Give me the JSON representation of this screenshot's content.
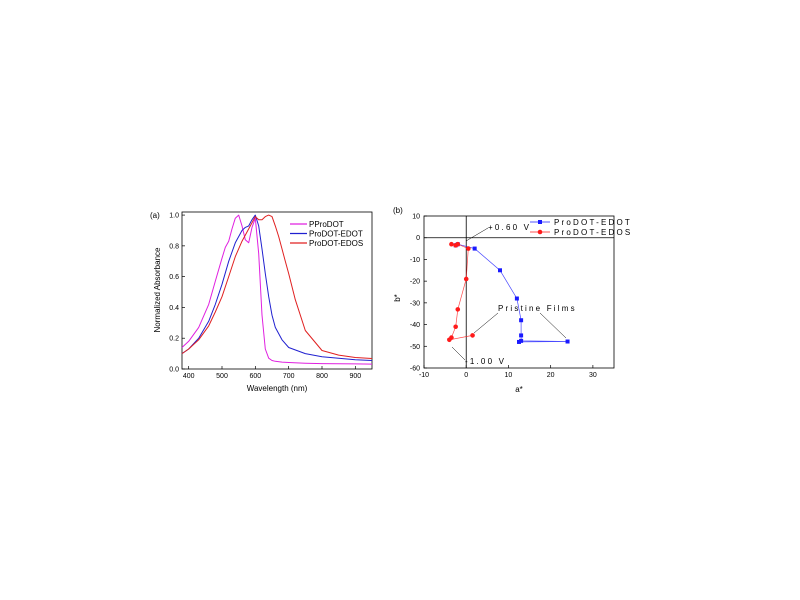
{
  "chart_data": [
    {
      "type": "line",
      "panel_label": "(a)",
      "xlabel": "Wavelength (nm)",
      "ylabel": "Normalized Absorbance",
      "xlim": [
        380,
        950
      ],
      "ylim": [
        0.0,
        1.02
      ],
      "xticks": [
        400,
        500,
        600,
        700,
        800,
        900
      ],
      "yticks": [
        0.0,
        0.2,
        0.4,
        0.6,
        0.8,
        1.0
      ],
      "grid": false,
      "legend_position": "top-right",
      "series": [
        {
          "name": "PProDOT",
          "color": "#e020e0",
          "x": [
            380,
            400,
            430,
            460,
            480,
            500,
            510,
            520,
            530,
            540,
            550,
            560,
            570,
            580,
            590,
            600,
            610,
            620,
            630,
            640,
            650,
            660,
            680,
            700,
            750,
            800,
            850,
            900,
            950
          ],
          "y": [
            0.14,
            0.18,
            0.27,
            0.42,
            0.57,
            0.72,
            0.79,
            0.83,
            0.91,
            0.98,
            1.0,
            0.93,
            0.84,
            0.82,
            0.92,
            0.98,
            0.75,
            0.35,
            0.13,
            0.07,
            0.055,
            0.05,
            0.045,
            0.042,
            0.038,
            0.035,
            0.034,
            0.033,
            0.032
          ]
        },
        {
          "name": "ProDOT-EDOT",
          "color": "#2020d0",
          "x": [
            380,
            400,
            430,
            460,
            480,
            500,
            520,
            540,
            560,
            570,
            580,
            590,
            600,
            610,
            620,
            630,
            640,
            650,
            660,
            680,
            700,
            750,
            800,
            850,
            900,
            950
          ],
          "y": [
            0.1,
            0.13,
            0.2,
            0.31,
            0.42,
            0.55,
            0.7,
            0.82,
            0.9,
            0.92,
            0.93,
            0.97,
            1.0,
            0.93,
            0.78,
            0.62,
            0.47,
            0.35,
            0.27,
            0.19,
            0.14,
            0.1,
            0.08,
            0.07,
            0.06,
            0.055
          ]
        },
        {
          "name": "ProDOT-EDOS",
          "color": "#e02020",
          "x": [
            380,
            400,
            430,
            460,
            480,
            500,
            520,
            540,
            560,
            580,
            590,
            600,
            610,
            620,
            630,
            640,
            650,
            660,
            670,
            680,
            690,
            700,
            720,
            750,
            800,
            850,
            900,
            950
          ],
          "y": [
            0.1,
            0.13,
            0.19,
            0.28,
            0.37,
            0.47,
            0.6,
            0.73,
            0.83,
            0.91,
            0.95,
            0.99,
            0.97,
            0.97,
            0.99,
            1.0,
            0.99,
            0.93,
            0.86,
            0.78,
            0.7,
            0.62,
            0.45,
            0.25,
            0.12,
            0.09,
            0.075,
            0.068
          ]
        }
      ]
    },
    {
      "type": "scatter",
      "panel_label": "(b)",
      "xlabel": "a*",
      "ylabel": "b*",
      "xlim": [
        -10,
        35
      ],
      "ylim": [
        -60,
        10
      ],
      "xticks": [
        -10,
        0,
        10,
        20,
        30
      ],
      "yticks": [
        10,
        0,
        -10,
        -20,
        -30,
        -40,
        -50,
        -60
      ],
      "grid": false,
      "legend_position": "top-right",
      "series": [
        {
          "name": "ProDOT-EDOT",
          "color": "#1a1aff",
          "marker": "square",
          "x": [
            -2.5,
            -2.0,
            2.0,
            8.0,
            12.0,
            13.0,
            13.0,
            13.0,
            24.0,
            12.5
          ],
          "y": [
            -3.5,
            -3.0,
            -5.0,
            -15.0,
            -28.0,
            -38.0,
            -45.0,
            -47.5,
            -47.8,
            -48.0
          ]
        },
        {
          "name": "ProDOT-EDOS",
          "color": "#ff1a1a",
          "marker": "circle",
          "x": [
            -3.5,
            -2.5,
            -2.0,
            0.5,
            0.0,
            -2.0,
            -2.5,
            -3.5,
            -4.0,
            1.5
          ],
          "y": [
            -3.0,
            -3.5,
            -3.0,
            -5.0,
            -19.0,
            -33.0,
            -41.0,
            -46.0,
            -47.0,
            -45.0
          ]
        }
      ],
      "annotations": [
        {
          "text": "+0.60 V"
        },
        {
          "text": "Pristine Films"
        },
        {
          "text": "-1.00 V"
        }
      ]
    }
  ]
}
